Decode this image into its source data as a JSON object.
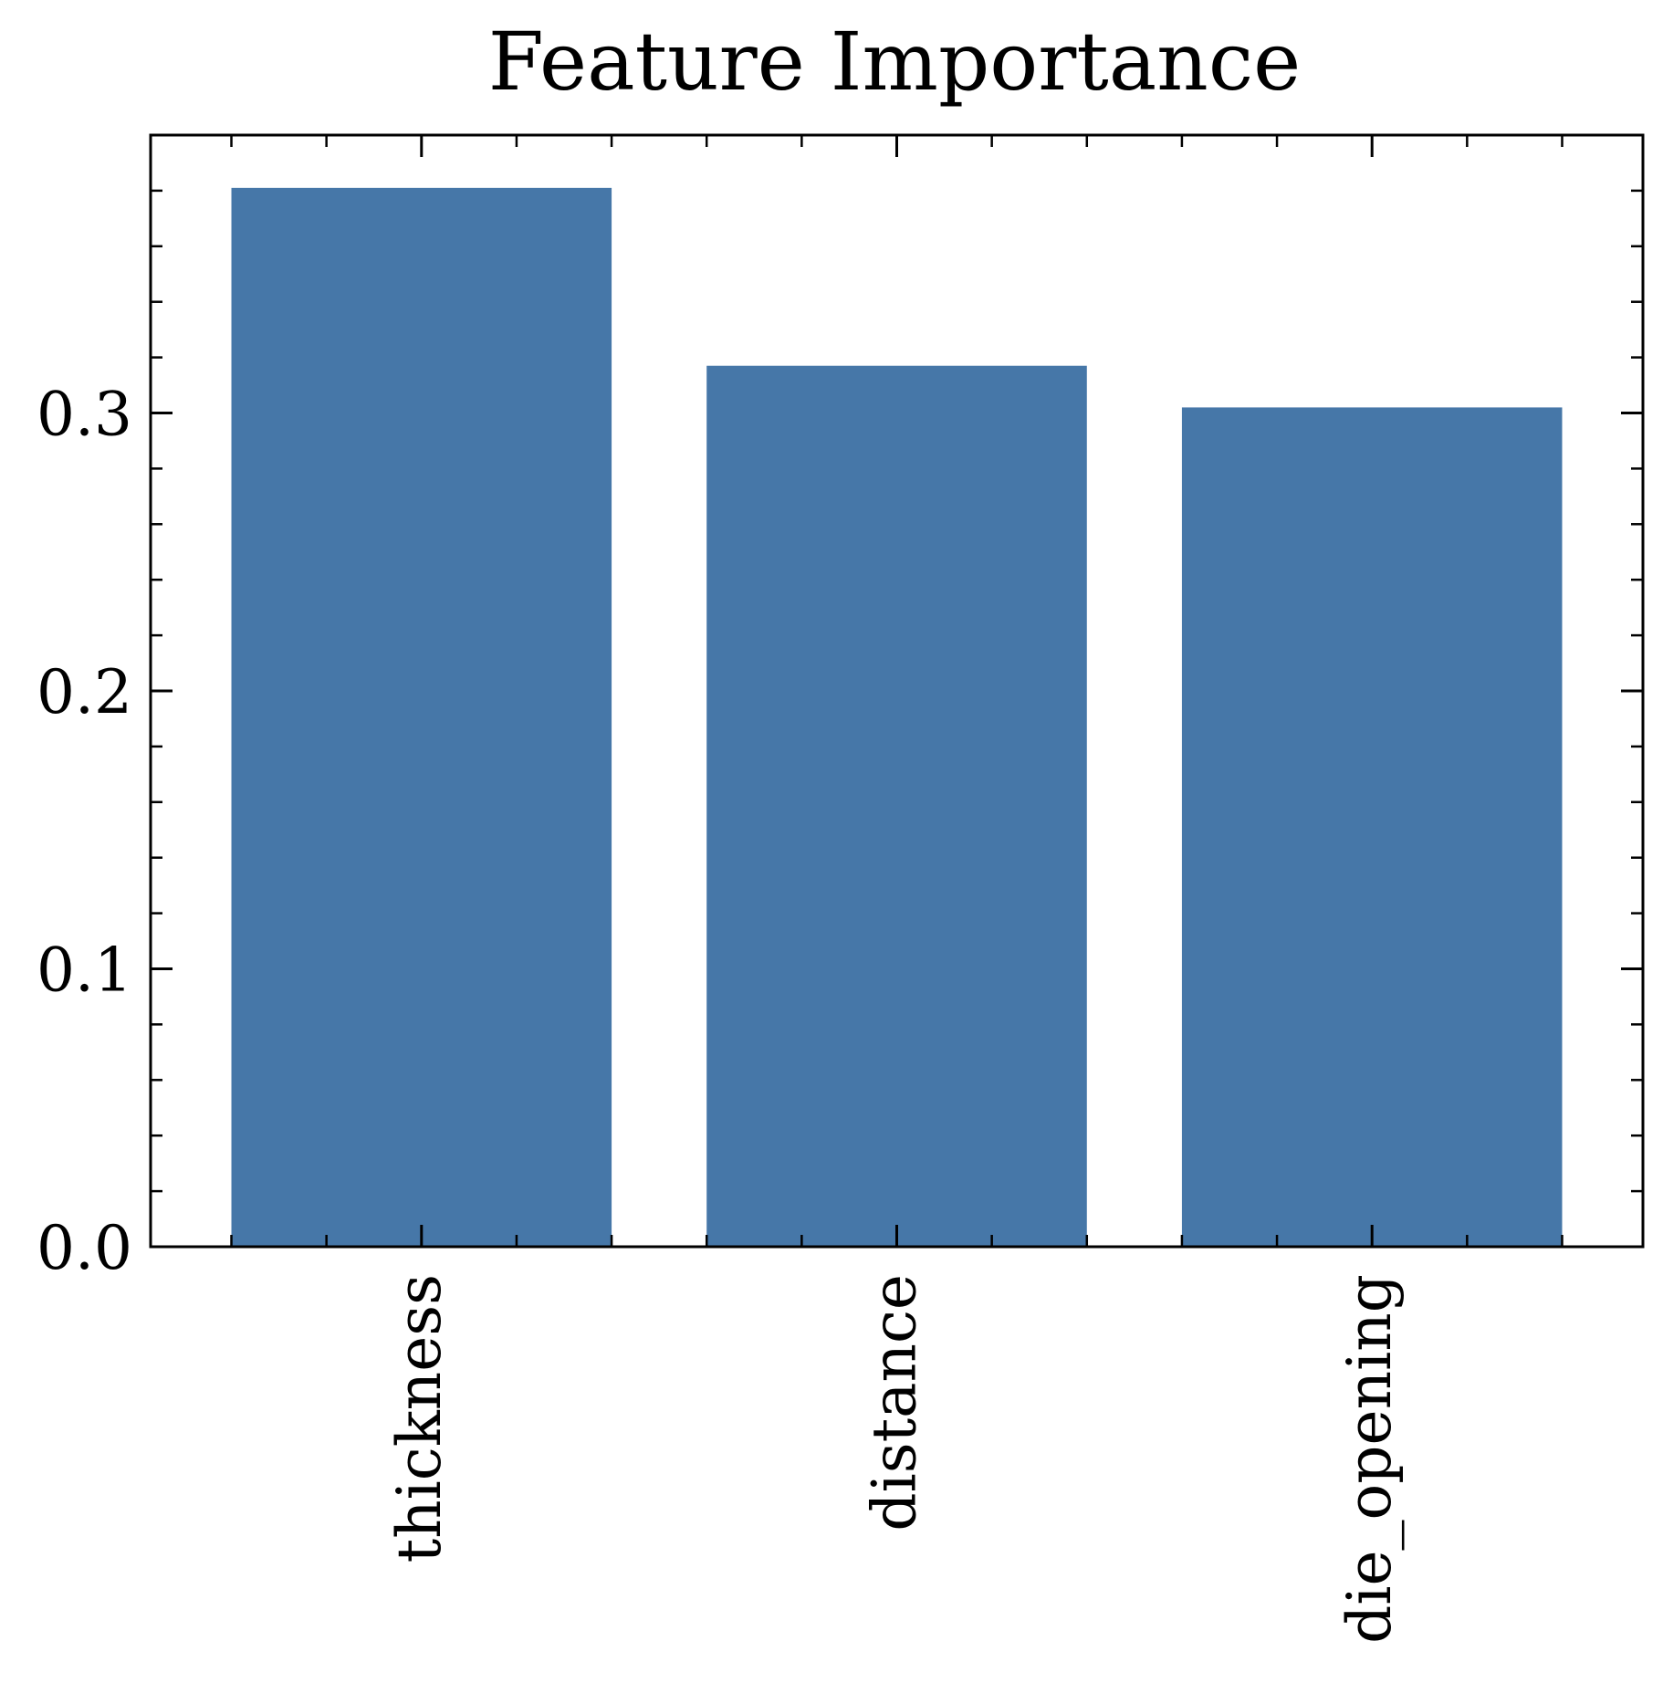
{
  "chart_data": {
    "type": "bar",
    "title": "Feature Importance",
    "xlabel": "",
    "ylabel": "",
    "categories": [
      "thickness",
      "distance",
      "die_opening"
    ],
    "values": [
      0.381,
      0.317,
      0.302
    ],
    "ylim": [
      0,
      0.4
    ],
    "yticks": [
      0.0,
      0.1,
      0.2,
      0.3
    ],
    "ytick_labels": [
      "0.0",
      "0.1",
      "0.2",
      "0.3"
    ],
    "y_minor_step": 0.02,
    "bar_color": "#4677a8",
    "grid": false,
    "legend": "none",
    "xtick_rotation": "vertical"
  }
}
